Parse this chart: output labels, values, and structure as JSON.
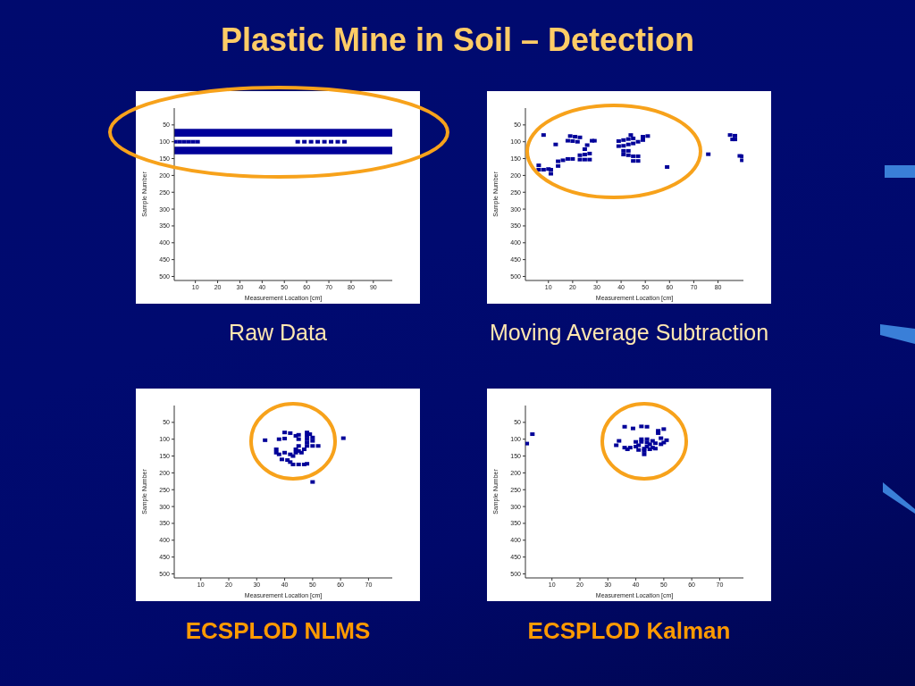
{
  "chart_data": [
    {
      "type": "scatter",
      "title": "Raw Data",
      "annotations": [
        "Plastic Mine in Soil – Detection"
      ],
      "xlabel": "Measurement Location [cm]",
      "ylabel": "Sample Number",
      "xlim": [
        0.5,
        98.5
      ],
      "ylim": [
        512,
        0
      ],
      "xticks": [
        10,
        20,
        30,
        40,
        50,
        60,
        70,
        80,
        90
      ],
      "yticks": [
        50,
        100,
        150,
        200,
        250,
        300,
        350,
        400,
        450,
        500
      ],
      "marker": "square",
      "bands": [
        {
          "axis": "y",
          "from": 62,
          "to": 85,
          "color": "#000099"
        },
        {
          "axis": "y",
          "from": 115,
          "to": 137,
          "color": "#000099"
        }
      ],
      "series": [
        {
          "color": "#000099",
          "x": [
            1,
            3,
            5,
            7,
            9,
            11,
            56,
            59,
            62,
            65,
            68,
            71,
            74,
            77
          ],
          "values": [
            100,
            100,
            100,
            100,
            100,
            100,
            100,
            100,
            100,
            100,
            100,
            100,
            100,
            100
          ]
        }
      ]
    },
    {
      "type": "scatter",
      "title": "Moving Average Subtraction",
      "xlabel": "Measurement Location [cm]",
      "ylabel": "Sample Number",
      "xlim": [
        0.5,
        90.5
      ],
      "ylim": [
        512,
        0
      ],
      "xticks": [
        10,
        20,
        30,
        40,
        50,
        60,
        70,
        80
      ],
      "yticks": [
        50,
        100,
        150,
        200,
        250,
        300,
        350,
        400,
        450,
        500
      ],
      "marker": "square",
      "series": [
        {
          "color": "#000099",
          "x": [
            8,
            19,
            21,
            23,
            18,
            20,
            22,
            28,
            29,
            13,
            26,
            25,
            23,
            25,
            27,
            14,
            16,
            18,
            20,
            23,
            25,
            27,
            14,
            6,
            6,
            8,
            10,
            11,
            11,
            39,
            41,
            43,
            45,
            39,
            41,
            43,
            45,
            47,
            49,
            51,
            49,
            44,
            41,
            43,
            41,
            43,
            45,
            47,
            45,
            47,
            59,
            76,
            85,
            87,
            87,
            86,
            89,
            90,
            90
          ],
          "values": [
            80,
            83,
            85,
            87,
            97,
            98,
            100,
            97,
            97,
            108,
            110,
            122,
            140,
            138,
            135,
            158,
            155,
            151,
            151,
            153,
            153,
            153,
            172,
            170,
            183,
            183,
            181,
            183,
            195,
            98,
            95,
            92,
            90,
            113,
            112,
            108,
            105,
            100,
            95,
            83,
            85,
            80,
            127,
            127,
            138,
            140,
            143,
            143,
            157,
            157,
            175,
            137,
            80,
            82,
            93,
            93,
            142,
            143,
            155
          ]
        }
      ]
    },
    {
      "type": "scatter",
      "title": "ECSPLOD NLMS",
      "xlabel": "Measurement Location [cm]",
      "ylabel": "Sample Number",
      "xlim": [
        0.5,
        78.5
      ],
      "ylim": [
        512,
        0
      ],
      "xticks": [
        10,
        20,
        30,
        40,
        50,
        60,
        70
      ],
      "yticks": [
        50,
        100,
        150,
        200,
        250,
        300,
        350,
        400,
        450,
        500
      ],
      "marker": "square",
      "series": [
        {
          "color": "#000099",
          "x": [
            33,
            40,
            42,
            38,
            40,
            45,
            45,
            44,
            48,
            48,
            48,
            48,
            49,
            50,
            50,
            48,
            50,
            52,
            47,
            46,
            44,
            45,
            37,
            37,
            38,
            40,
            42,
            44,
            43,
            45,
            39,
            41,
            42,
            43,
            45,
            47,
            48,
            61,
            50
          ],
          "values": [
            103,
            80,
            82,
            100,
            98,
            87,
            100,
            90,
            80,
            90,
            100,
            110,
            85,
            95,
            105,
            120,
            120,
            120,
            130,
            140,
            130,
            120,
            130,
            140,
            145,
            140,
            145,
            140,
            150,
            135,
            160,
            162,
            168,
            175,
            175,
            175,
            173,
            97,
            227
          ]
        }
      ]
    },
    {
      "type": "scatter",
      "title": "ECSPLOD Kalman",
      "xlabel": "Measurement Location [cm]",
      "ylabel": "Sample Number",
      "xlim": [
        0.5,
        78.5
      ],
      "ylim": [
        512,
        0
      ],
      "xticks": [
        10,
        20,
        30,
        40,
        50,
        60,
        70
      ],
      "yticks": [
        50,
        100,
        150,
        200,
        250,
        300,
        350,
        400,
        450,
        500
      ],
      "marker": "square",
      "series": [
        {
          "color": "#000099",
          "x": [
            3,
            1,
            36,
            39,
            42,
            44,
            48,
            50,
            48,
            49,
            51,
            50,
            49,
            34,
            33,
            36,
            37,
            38,
            40,
            41,
            40,
            42,
            44,
            45,
            47,
            46,
            44,
            42,
            41,
            43,
            43,
            43,
            45,
            47,
            46,
            44
          ],
          "values": [
            85,
            113,
            63,
            68,
            62,
            63,
            75,
            70,
            82,
            97,
            103,
            110,
            115,
            105,
            118,
            125,
            130,
            125,
            122,
            118,
            108,
            108,
            110,
            115,
            112,
            105,
            100,
            100,
            132,
            135,
            145,
            128,
            130,
            128,
            125,
            122
          ]
        }
      ]
    }
  ]
}
